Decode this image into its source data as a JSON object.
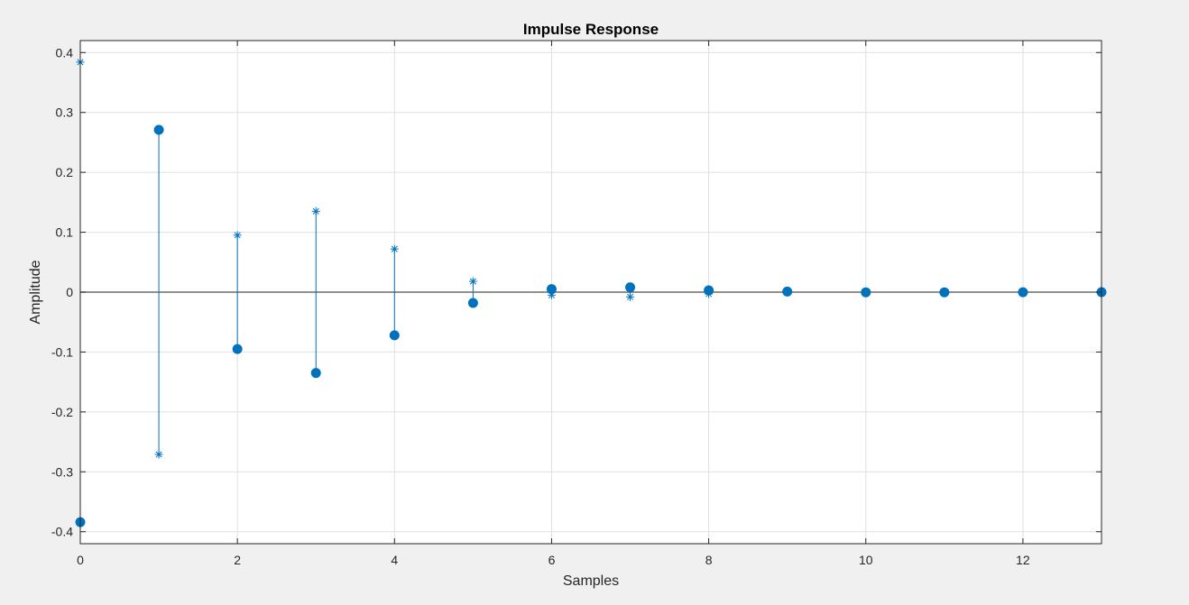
{
  "chart_data": {
    "type": "stem",
    "title": "Impulse Response",
    "xlabel": "Samples",
    "ylabel": "Amplitude",
    "xlim": [
      0,
      13
    ],
    "ylim": [
      -0.42,
      0.42
    ],
    "xticks": [
      0,
      2,
      4,
      6,
      8,
      10,
      12
    ],
    "xtick_labels": [
      "0",
      "2",
      "4",
      "6",
      "8",
      "10",
      "12"
    ],
    "yticks": [
      0.4,
      0.3,
      0.2,
      0.1,
      0,
      -0.1,
      -0.2,
      -0.3,
      -0.4
    ],
    "ytick_labels": [
      "0.4",
      "0.3",
      "0.2",
      "0.1",
      "0",
      "-0.1",
      "-0.2",
      "-0.3",
      "-0.4"
    ],
    "grid": true,
    "series": [
      {
        "marker": "circle-filled",
        "color": "#0072bd",
        "x": [
          0,
          1,
          2,
          3,
          4,
          5,
          6,
          7,
          8,
          9,
          10,
          11,
          12,
          13
        ],
        "values": [
          -0.384,
          0.271,
          -0.095,
          -0.135,
          -0.072,
          -0.018,
          0.005,
          0.008,
          0.003,
          0.001,
          -0.0003,
          -0.0003,
          -0.0001,
          0.0
        ]
      },
      {
        "marker": "asterisk",
        "color": "#0072bd",
        "x": [
          0,
          1,
          2,
          3,
          4,
          5,
          6,
          7,
          8
        ],
        "values": [
          0.384,
          -0.271,
          0.095,
          0.135,
          0.072,
          0.018,
          -0.005,
          -0.008,
          -0.003
        ]
      }
    ]
  }
}
